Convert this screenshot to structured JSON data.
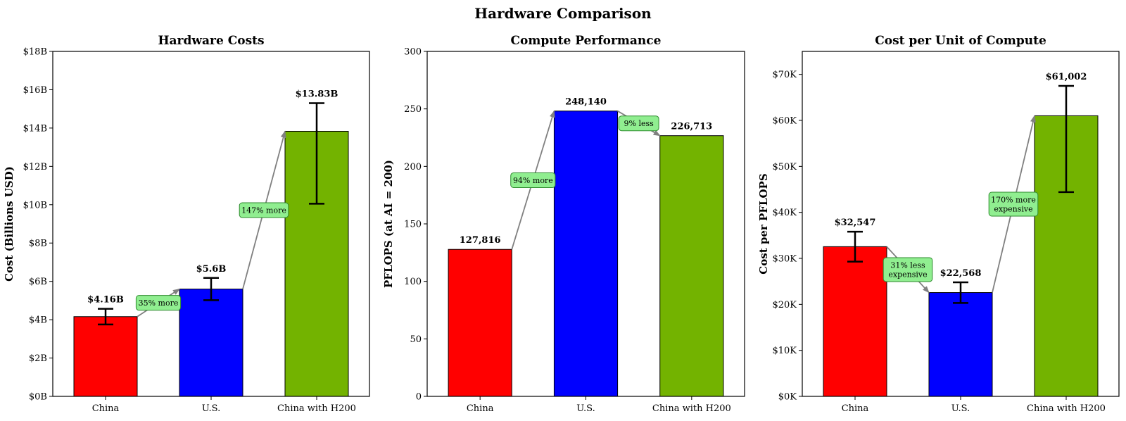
{
  "figure_title": "Hardware Comparison",
  "colors": {
    "China": "#ff0000",
    "U.S.": "#0000ff",
    "China with H200": "#73b300",
    "annotation_box": "#90ee90",
    "annotation_border": "#2e8b2e",
    "arrow": "#808080"
  },
  "chart_data": [
    {
      "type": "bar",
      "title": "Hardware Costs",
      "ylabel": "Cost (Billions USD)",
      "categories": [
        "China",
        "U.S.",
        "China with H200"
      ],
      "values": [
        4.16,
        5.6,
        13.83
      ],
      "error_low": [
        3.75,
        5.02,
        10.05
      ],
      "error_high": [
        4.57,
        6.18,
        15.3
      ],
      "value_labels": [
        "$4.16B",
        "$5.6B",
        "$13.83B"
      ],
      "ylim": [
        0,
        18
      ],
      "yticks": [
        0,
        2,
        4,
        6,
        8,
        10,
        12,
        14,
        16,
        18
      ],
      "ytick_labels": [
        "$0B",
        "$2B",
        "$4B",
        "$6B",
        "$8B",
        "$10B",
        "$12B",
        "$14B",
        "$16B",
        "$18B"
      ],
      "annotations": [
        {
          "from": 0,
          "to": 1,
          "text": [
            "35% more"
          ]
        },
        {
          "from": 1,
          "to": 2,
          "text": [
            "147% more"
          ]
        }
      ]
    },
    {
      "type": "bar",
      "title": "Compute Performance",
      "ylabel": "PFLOPS (at AI = 200)",
      "categories": [
        "China",
        "U.S.",
        "China with H200"
      ],
      "values": [
        127816,
        248140,
        226713
      ],
      "value_labels": [
        "127,816",
        "248,140",
        "226,713"
      ],
      "ylim": [
        0,
        300000
      ],
      "yticks": [
        0,
        50000,
        100000,
        150000,
        200000,
        250000,
        300000
      ],
      "ytick_labels": [
        "0",
        "50",
        "100",
        "150",
        "200",
        "250",
        "300"
      ],
      "annotations": [
        {
          "from": 0,
          "to": 1,
          "text": [
            "94% more"
          ]
        },
        {
          "from": 1,
          "to": 2,
          "text": [
            "9% less"
          ]
        }
      ]
    },
    {
      "type": "bar",
      "title": "Cost per Unit of Compute",
      "ylabel": "Cost per PFLOPS",
      "categories": [
        "China",
        "U.S.",
        "China with H200"
      ],
      "values": [
        32547,
        22568,
        61002
      ],
      "error_low": [
        29300,
        20300,
        44400
      ],
      "error_high": [
        35800,
        24800,
        67500
      ],
      "value_labels": [
        "$32,547",
        "$22,568",
        "$61,002"
      ],
      "ylim": [
        0,
        75000
      ],
      "yticks": [
        0,
        10000,
        20000,
        30000,
        40000,
        50000,
        60000,
        70000
      ],
      "ytick_labels": [
        "$0K",
        "$10K",
        "$20K",
        "$30K",
        "$40K",
        "$50K",
        "$60K",
        "$70K"
      ],
      "annotations": [
        {
          "from": 0,
          "to": 1,
          "text": [
            "31% less",
            "expensive"
          ]
        },
        {
          "from": 1,
          "to": 2,
          "text": [
            "170% more",
            "expensive"
          ]
        }
      ]
    }
  ]
}
